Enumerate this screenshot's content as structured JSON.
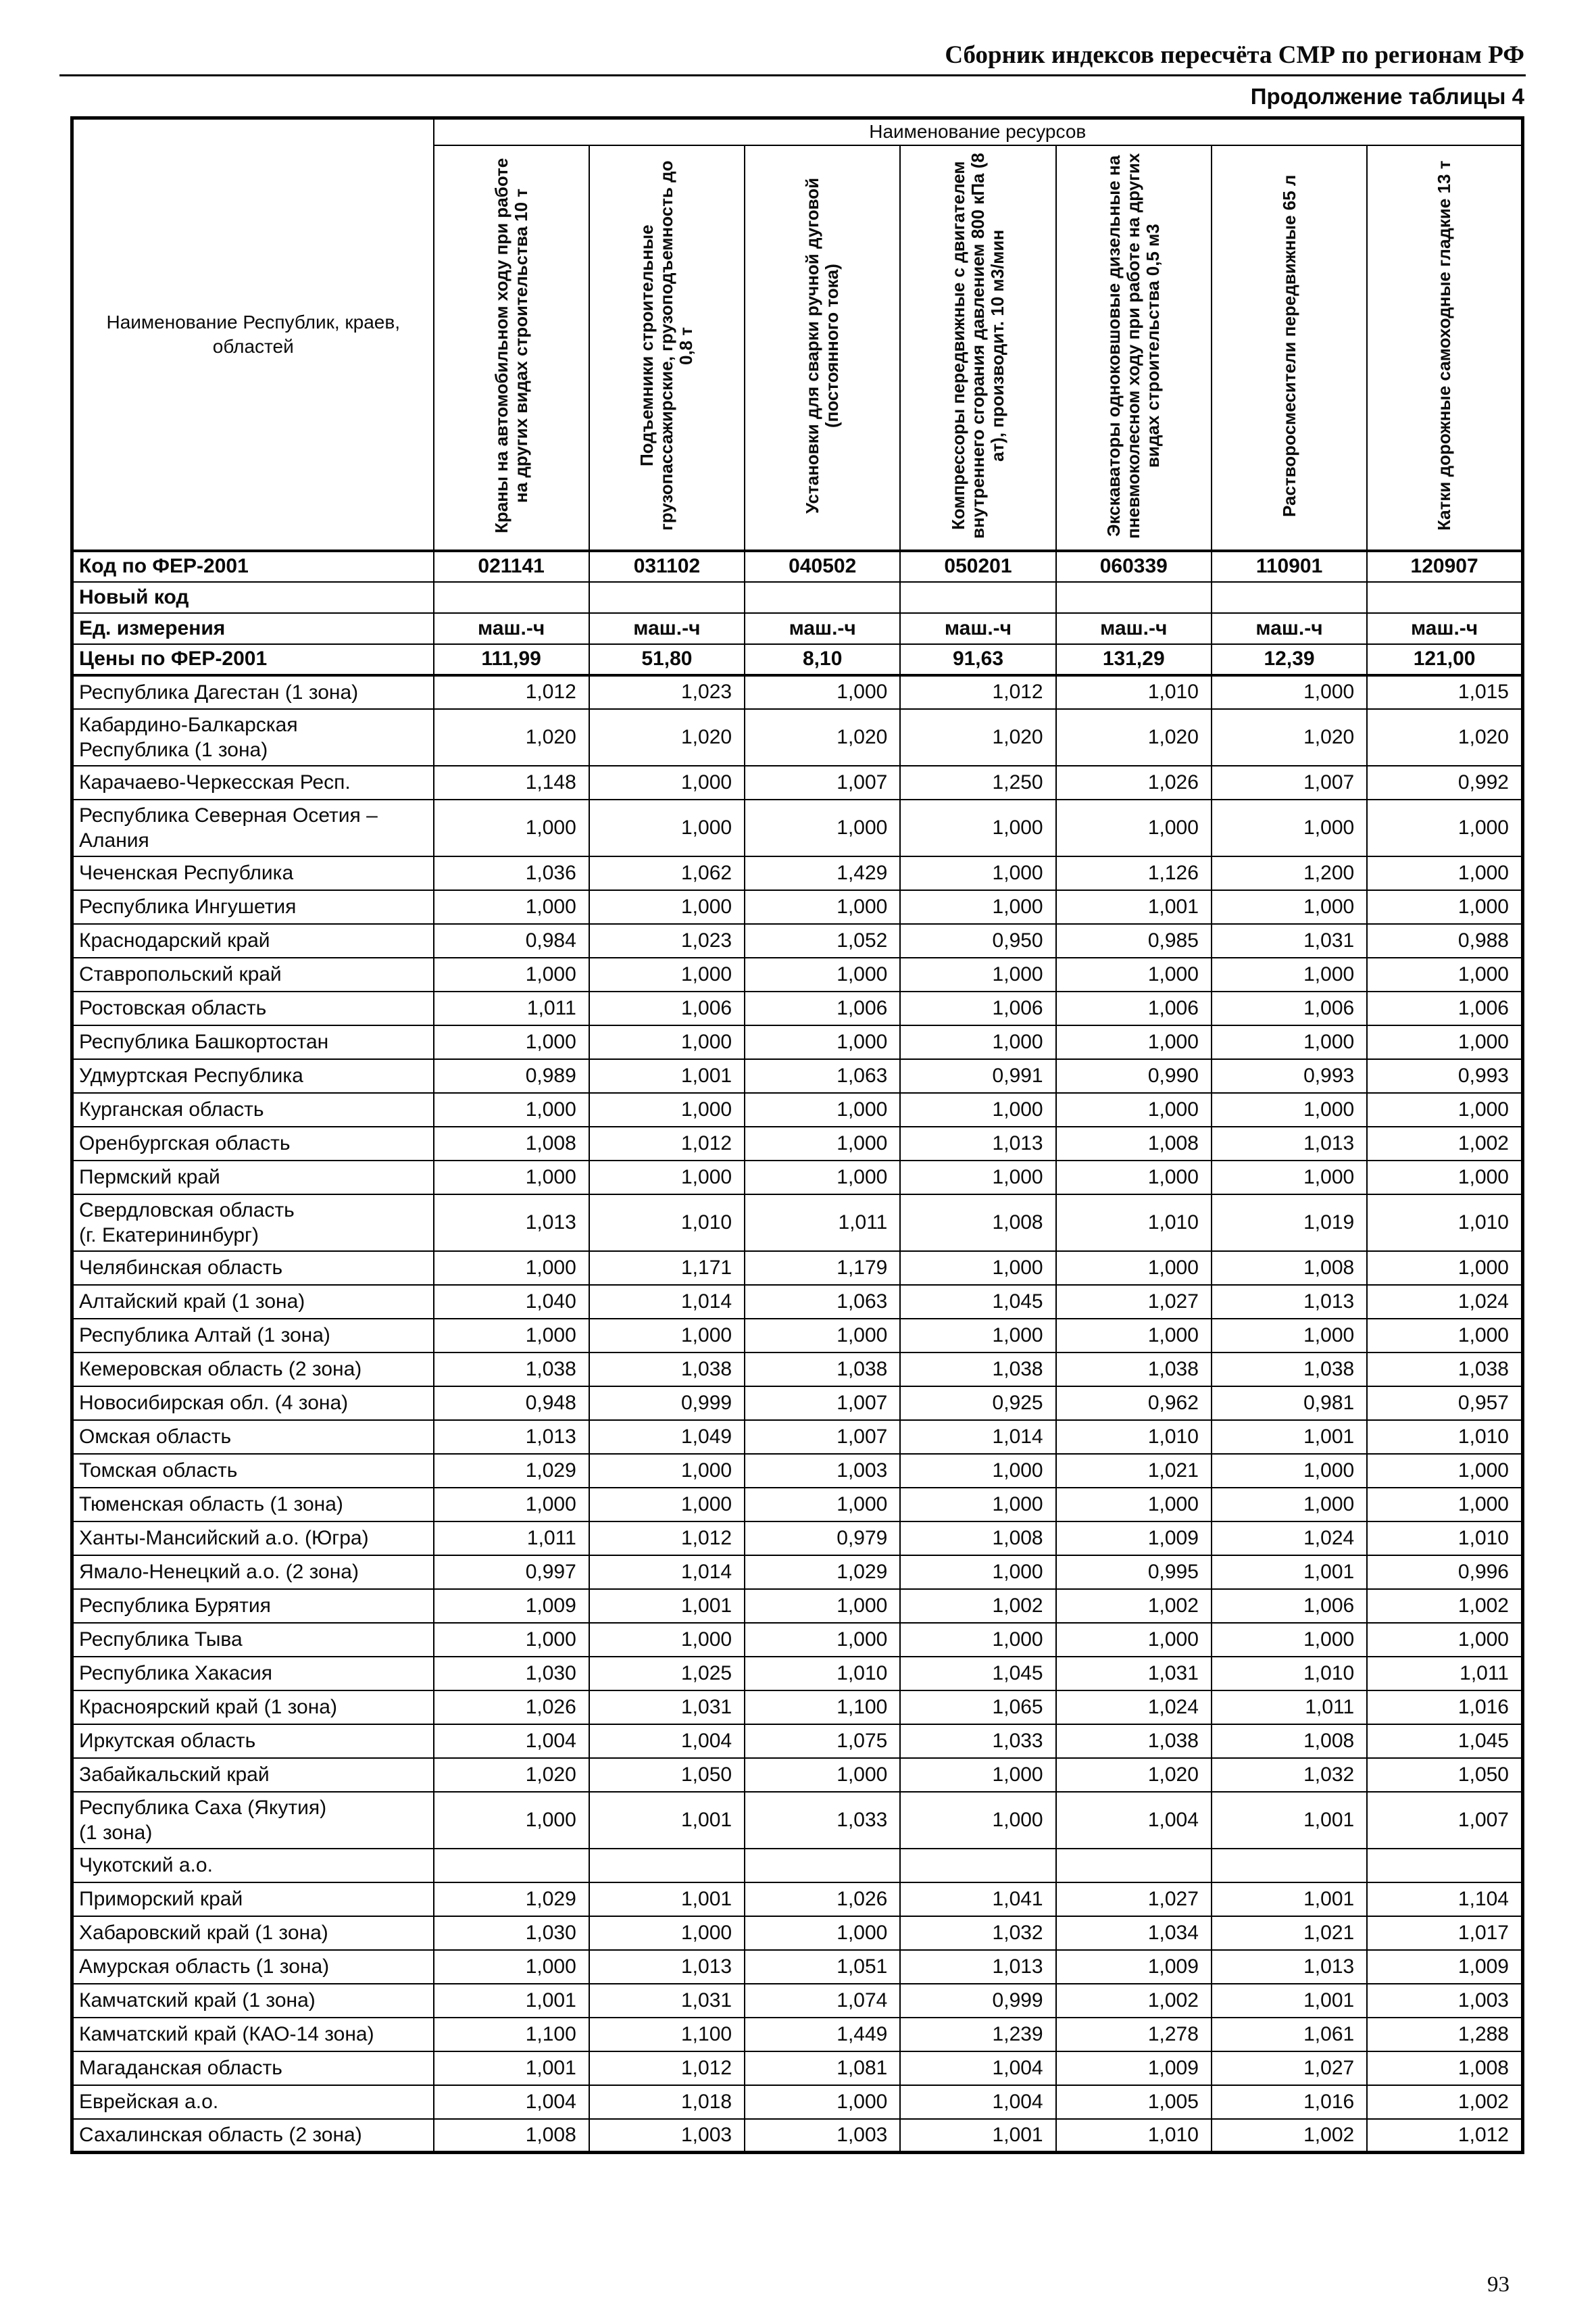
{
  "page": {
    "header": "Сборник индексов пересчёта СМР по регионам РФ",
    "subtitle": "Продолжение таблицы 4",
    "page_number": "93"
  },
  "table": {
    "region_header": "Наименование Республик, краев, областей",
    "resources_header": "Наименование ресурсов",
    "resource_columns": [
      "Краны на автомобильном ходу при работе на других видах строительства 10 т",
      "Подъемники строительные грузопассажирские, грузоподъемность до 0,8 т",
      "Установки для сварки ручной дуговой (постоянного тока)",
      "Компрессоры передвижные с двигателем внутреннего сгорания давлением 800 кПа (8 ат), производит. 10 м3/мин",
      "Экскаваторы одноковшовые дизельные на пневмоколесном ходу при работе на других видах строительства 0,5 м3",
      "Растворосмесители передвижные 65 л",
      "Катки дорожные самоходные гладкие 13 т"
    ],
    "meta_rows": [
      {
        "label": "Код по ФЕР-2001",
        "values": [
          "021141",
          "031102",
          "040502",
          "050201",
          "060339",
          "110901",
          "120907"
        ]
      },
      {
        "label": "Новый код",
        "values": [
          "",
          "",
          "",
          "",
          "",
          "",
          ""
        ]
      },
      {
        "label": "Ед. измерения",
        "values": [
          "маш.-ч",
          "маш.-ч",
          "маш.-ч",
          "маш.-ч",
          "маш.-ч",
          "маш.-ч",
          "маш.-ч"
        ]
      },
      {
        "label": "Цены по ФЕР-2001",
        "values": [
          "111,99",
          "51,80",
          "8,10",
          "91,63",
          "131,29",
          "12,39",
          "121,00"
        ]
      }
    ],
    "rows": [
      {
        "region": "Республика Дагестан (1 зона)",
        "values": [
          "1,012",
          "1,023",
          "1,000",
          "1,012",
          "1,010",
          "1,000",
          "1,015"
        ]
      },
      {
        "region": "Кабардино-Балкарская\nРеспублика (1 зона)",
        "values": [
          "1,020",
          "1,020",
          "1,020",
          "1,020",
          "1,020",
          "1,020",
          "1,020"
        ]
      },
      {
        "region": "Карачаево-Черкесская Респ.",
        "values": [
          "1,148",
          "1,000",
          "1,007",
          "1,250",
          "1,026",
          "1,007",
          "0,992"
        ]
      },
      {
        "region": "Республика Северная Осетия –\nАлания",
        "values": [
          "1,000",
          "1,000",
          "1,000",
          "1,000",
          "1,000",
          "1,000",
          "1,000"
        ]
      },
      {
        "region": "Чеченская Республика",
        "values": [
          "1,036",
          "1,062",
          "1,429",
          "1,000",
          "1,126",
          "1,200",
          "1,000"
        ]
      },
      {
        "region": "Республика Ингушетия",
        "values": [
          "1,000",
          "1,000",
          "1,000",
          "1,000",
          "1,001",
          "1,000",
          "1,000"
        ]
      },
      {
        "region": "Краснодарский край",
        "values": [
          "0,984",
          "1,023",
          "1,052",
          "0,950",
          "0,985",
          "1,031",
          "0,988"
        ]
      },
      {
        "region": "Ставропольский край",
        "values": [
          "1,000",
          "1,000",
          "1,000",
          "1,000",
          "1,000",
          "1,000",
          "1,000"
        ]
      },
      {
        "region": "Ростовская область",
        "values": [
          "1,011",
          "1,006",
          "1,006",
          "1,006",
          "1,006",
          "1,006",
          "1,006"
        ]
      },
      {
        "region": "Республика Башкортостан",
        "values": [
          "1,000",
          "1,000",
          "1,000",
          "1,000",
          "1,000",
          "1,000",
          "1,000"
        ]
      },
      {
        "region": "Удмуртская Республика",
        "values": [
          "0,989",
          "1,001",
          "1,063",
          "0,991",
          "0,990",
          "0,993",
          "0,993"
        ]
      },
      {
        "region": "Курганская область",
        "values": [
          "1,000",
          "1,000",
          "1,000",
          "1,000",
          "1,000",
          "1,000",
          "1,000"
        ]
      },
      {
        "region": "Оренбургская область",
        "values": [
          "1,008",
          "1,012",
          "1,000",
          "1,013",
          "1,008",
          "1,013",
          "1,002"
        ]
      },
      {
        "region": "Пермский край",
        "values": [
          "1,000",
          "1,000",
          "1,000",
          "1,000",
          "1,000",
          "1,000",
          "1,000"
        ]
      },
      {
        "region": "Свердловская область\n(г. Екатерининбург)",
        "values": [
          "1,013",
          "1,010",
          "1,011",
          "1,008",
          "1,010",
          "1,019",
          "1,010"
        ]
      },
      {
        "region": "Челябинская область",
        "values": [
          "1,000",
          "1,171",
          "1,179",
          "1,000",
          "1,000",
          "1,008",
          "1,000"
        ]
      },
      {
        "region": "Алтайский край (1 зона)",
        "values": [
          "1,040",
          "1,014",
          "1,063",
          "1,045",
          "1,027",
          "1,013",
          "1,024"
        ]
      },
      {
        "region": "Республика Алтай (1 зона)",
        "values": [
          "1,000",
          "1,000",
          "1,000",
          "1,000",
          "1,000",
          "1,000",
          "1,000"
        ]
      },
      {
        "region": "Кемеровская область (2 зона)",
        "values": [
          "1,038",
          "1,038",
          "1,038",
          "1,038",
          "1,038",
          "1,038",
          "1,038"
        ]
      },
      {
        "region": "Новосибирская обл. (4 зона)",
        "values": [
          "0,948",
          "0,999",
          "1,007",
          "0,925",
          "0,962",
          "0,981",
          "0,957"
        ]
      },
      {
        "region": "Омская область",
        "values": [
          "1,013",
          "1,049",
          "1,007",
          "1,014",
          "1,010",
          "1,001",
          "1,010"
        ]
      },
      {
        "region": "Томская область",
        "values": [
          "1,029",
          "1,000",
          "1,003",
          "1,000",
          "1,021",
          "1,000",
          "1,000"
        ]
      },
      {
        "region": "Тюменская область (1 зона)",
        "values": [
          "1,000",
          "1,000",
          "1,000",
          "1,000",
          "1,000",
          "1,000",
          "1,000"
        ]
      },
      {
        "region": "Ханты-Мансийский а.о. (Югра)",
        "values": [
          "1,011",
          "1,012",
          "0,979",
          "1,008",
          "1,009",
          "1,024",
          "1,010"
        ]
      },
      {
        "region": "Ямало-Ненецкий а.о. (2 зона)",
        "values": [
          "0,997",
          "1,014",
          "1,029",
          "1,000",
          "0,995",
          "1,001",
          "0,996"
        ]
      },
      {
        "region": "Республика Бурятия",
        "values": [
          "1,009",
          "1,001",
          "1,000",
          "1,002",
          "1,002",
          "1,006",
          "1,002"
        ]
      },
      {
        "region": "Республика Тыва",
        "values": [
          "1,000",
          "1,000",
          "1,000",
          "1,000",
          "1,000",
          "1,000",
          "1,000"
        ]
      },
      {
        "region": "Республика Хакасия",
        "values": [
          "1,030",
          "1,025",
          "1,010",
          "1,045",
          "1,031",
          "1,010",
          "1,011"
        ]
      },
      {
        "region": "Красноярский край (1 зона)",
        "values": [
          "1,026",
          "1,031",
          "1,100",
          "1,065",
          "1,024",
          "1,011",
          "1,016"
        ]
      },
      {
        "region": "Иркутская область",
        "values": [
          "1,004",
          "1,004",
          "1,075",
          "1,033",
          "1,038",
          "1,008",
          "1,045"
        ]
      },
      {
        "region": "Забайкальский край",
        "values": [
          "1,020",
          "1,050",
          "1,000",
          "1,000",
          "1,020",
          "1,032",
          "1,050"
        ]
      },
      {
        "region": "Республика Саха (Якутия)\n(1 зона)",
        "values": [
          "1,000",
          "1,001",
          "1,033",
          "1,000",
          "1,004",
          "1,001",
          "1,007"
        ]
      },
      {
        "region": "Чукотский а.о.",
        "values": [
          "",
          "",
          "",
          "",
          "",
          "",
          ""
        ]
      },
      {
        "region": "Приморский край",
        "values": [
          "1,029",
          "1,001",
          "1,026",
          "1,041",
          "1,027",
          "1,001",
          "1,104"
        ]
      },
      {
        "region": "Хабаровский край (1 зона)",
        "values": [
          "1,030",
          "1,000",
          "1,000",
          "1,032",
          "1,034",
          "1,021",
          "1,017"
        ]
      },
      {
        "region": "Амурская область (1 зона)",
        "values": [
          "1,000",
          "1,013",
          "1,051",
          "1,013",
          "1,009",
          "1,013",
          "1,009"
        ]
      },
      {
        "region": "Камчатский край (1 зона)",
        "values": [
          "1,001",
          "1,031",
          "1,074",
          "0,999",
          "1,002",
          "1,001",
          "1,003"
        ]
      },
      {
        "region": "Камчатский край (КАО-14 зона)",
        "values": [
          "1,100",
          "1,100",
          "1,449",
          "1,239",
          "1,278",
          "1,061",
          "1,288"
        ]
      },
      {
        "region": "Магаданская область",
        "values": [
          "1,001",
          "1,012",
          "1,081",
          "1,004",
          "1,009",
          "1,027",
          "1,008"
        ]
      },
      {
        "region": "Еврейская а.о.",
        "values": [
          "1,004",
          "1,018",
          "1,000",
          "1,004",
          "1,005",
          "1,016",
          "1,002"
        ]
      },
      {
        "region": "Сахалинская область (2 зона)",
        "values": [
          "1,008",
          "1,003",
          "1,003",
          "1,001",
          "1,010",
          "1,002",
          "1,012"
        ]
      }
    ]
  }
}
